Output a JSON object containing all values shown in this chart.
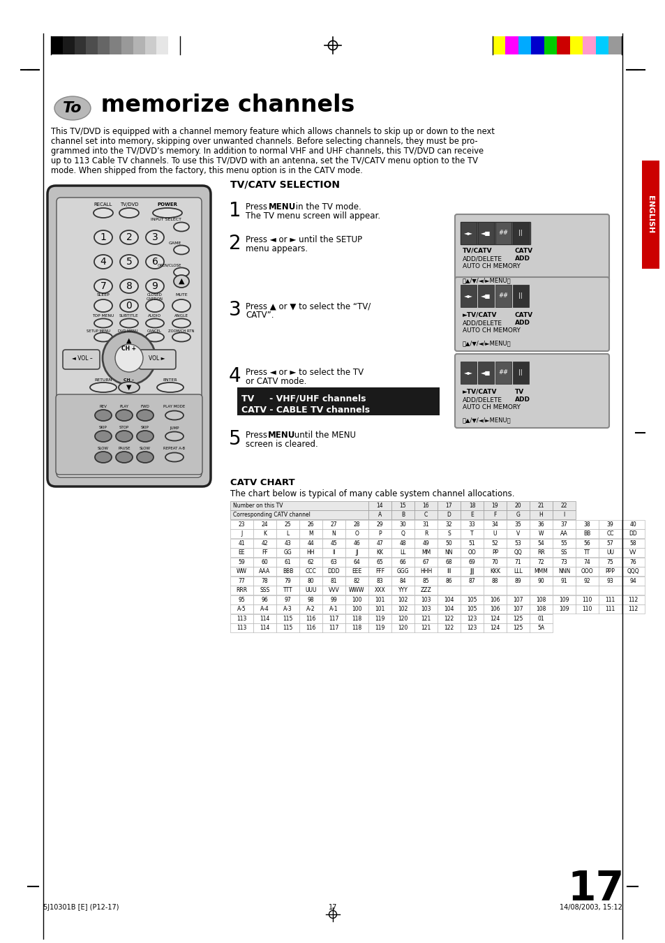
{
  "page_bg": "#ffffff",
  "title_text": "memorize channels",
  "title_prefix": "To",
  "body_text": "This TV/DVD is equipped with a channel memory feature which allows channels to skip up or down to the next\nchannel set into memory, skipping over unwanted channels. Before selecting channels, they must be pro-\ngrammed into the TV/DVD’s memory. In addition to normal VHF and UHF channels, this TV/DVD can receive\nup to 113 Cable TV channels. To use this TV/DVD with an antenna, set the TV/CATV menu option to the TV\nmode. When shipped from the factory, this menu option is in the CATV mode.",
  "section_title": "TV/CATV SELECTION",
  "catv_title": "CATV CHART",
  "catv_desc": "The chart below is typical of many cable system channel allocations.",
  "page_num": "17",
  "footer_left": "5J10301B [E] (P12-17)",
  "footer_center": "17",
  "footer_right": "14/08/2003, 15:12",
  "english_label": "ENGLISH",
  "grayscale_colors": [
    "#000000",
    "#1a1a1a",
    "#333333",
    "#4d4d4d",
    "#666666",
    "#808080",
    "#999999",
    "#b3b3b3",
    "#cccccc",
    "#e6e6e6",
    "#ffffff"
  ],
  "color_bar": [
    "#ffff00",
    "#ff00ff",
    "#00aaff",
    "#0000cc",
    "#00cc00",
    "#cc0000",
    "#ffff00",
    "#ff99cc",
    "#00ccff",
    "#999999"
  ],
  "catv_rows": [
    [
      "Number on this TV",
      "",
      "",
      "",
      "",
      "",
      "14",
      "15",
      "16",
      "17",
      "18",
      "19",
      "20",
      "21",
      "22"
    ],
    [
      "Corresponding CATV channel",
      "",
      "",
      "",
      "",
      "",
      "A",
      "B",
      "C",
      "D",
      "E",
      "F",
      "G",
      "H",
      "I"
    ],
    [
      "23",
      "24",
      "25",
      "26",
      "27",
      "28",
      "29",
      "30",
      "31",
      "32",
      "33",
      "34",
      "35",
      "36",
      "37",
      "38",
      "39",
      "40"
    ],
    [
      "J",
      "K",
      "L",
      "M",
      "N",
      "O",
      "P",
      "Q",
      "R",
      "S",
      "T",
      "U",
      "V",
      "W",
      "AA",
      "BB",
      "CC",
      "DD"
    ],
    [
      "41",
      "42",
      "43",
      "44",
      "45",
      "46",
      "47",
      "48",
      "49",
      "50",
      "51",
      "52",
      "53",
      "54",
      "55",
      "56",
      "57",
      "58"
    ],
    [
      "EE",
      "FF",
      "GG",
      "HH",
      "II",
      "JJ",
      "KK",
      "LL",
      "MM",
      "NN",
      "OO",
      "PP",
      "QQ",
      "RR",
      "SS",
      "TT",
      "UU",
      "VV"
    ],
    [
      "59",
      "60",
      "61",
      "62",
      "63",
      "64",
      "65",
      "66",
      "67",
      "68",
      "69",
      "70",
      "71",
      "72",
      "73",
      "74",
      "75",
      "76"
    ],
    [
      "WW",
      "AAA",
      "BBB",
      "CCC",
      "DDD",
      "EEE",
      "FFF",
      "GGG",
      "HHH",
      "III",
      "JJJ",
      "KKK",
      "LLL",
      "MMM",
      "NNN",
      "OOO",
      "PPP",
      "QQQ"
    ],
    [
      "77",
      "78",
      "79",
      "80",
      "81",
      "82",
      "83",
      "84",
      "85",
      "86",
      "87",
      "88",
      "89",
      "90",
      "91",
      "92",
      "93",
      "94"
    ],
    [
      "RRR",
      "SSS",
      "TTT",
      "UUU",
      "VVV",
      "WWW",
      "XXX",
      "YYY",
      "ZZZ",
      "",
      "",
      "",
      "",
      "",
      "",
      "",
      "",
      ""
    ],
    [
      "95",
      "96",
      "97",
      "98",
      "99",
      "100",
      "101",
      "102",
      "103",
      "104",
      "105",
      "106",
      "107",
      "108",
      "109",
      "110",
      "111",
      "112"
    ],
    [
      "A-5",
      "A-4",
      "A-3",
      "A-2",
      "A-1",
      "100",
      "101",
      "102",
      "103",
      "104",
      "105",
      "106",
      "107",
      "108",
      "109",
      "110",
      "111",
      "112"
    ],
    [
      "113",
      "114",
      "115",
      "116",
      "117",
      "118",
      "119",
      "120",
      "121",
      "122",
      "123",
      "124",
      "125",
      "01"
    ],
    [
      "113",
      "114",
      "115",
      "116",
      "117",
      "118",
      "119",
      "120",
      "121",
      "122",
      "123",
      "124",
      "125",
      "5A"
    ]
  ]
}
